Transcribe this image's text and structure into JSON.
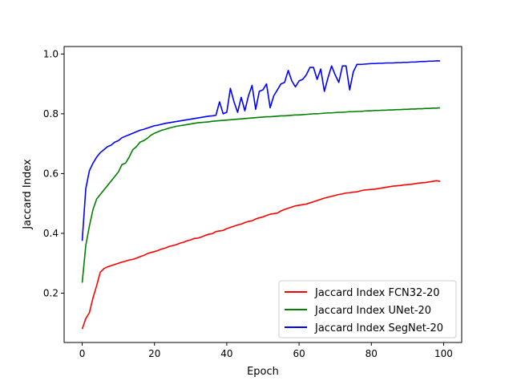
{
  "chart_data": {
    "type": "line",
    "title": "",
    "xlabel": "Epoch",
    "ylabel": "Jaccard Index",
    "xlim": [
      -5,
      105
    ],
    "ylim": [
      0.035,
      1.025
    ],
    "xticks": [
      0,
      20,
      40,
      60,
      80,
      100
    ],
    "yticks": [
      0.2,
      0.4,
      0.6,
      0.8,
      1.0
    ],
    "ytick_labels": [
      "0.2",
      "0.4",
      "0.6",
      "0.8",
      "1.0"
    ],
    "grid": false,
    "legend_position": "lower-right",
    "series": [
      {
        "name": "Jaccard Index FCN32-20",
        "color": "#ff0000",
        "x": [
          0,
          1,
          2,
          3,
          4,
          5,
          6,
          7,
          8,
          9,
          10,
          11,
          12,
          13,
          14,
          15,
          16,
          17,
          18,
          19,
          20,
          21,
          22,
          23,
          24,
          25,
          26,
          27,
          28,
          29,
          30,
          31,
          32,
          33,
          34,
          35,
          36,
          37,
          38,
          39,
          40,
          41,
          42,
          43,
          44,
          45,
          46,
          47,
          48,
          49,
          50,
          51,
          52,
          53,
          54,
          55,
          56,
          57,
          58,
          59,
          60,
          61,
          62,
          63,
          64,
          65,
          66,
          67,
          68,
          69,
          70,
          71,
          72,
          73,
          74,
          75,
          76,
          77,
          78,
          79,
          80,
          81,
          82,
          83,
          84,
          85,
          86,
          87,
          88,
          89,
          90,
          91,
          92,
          93,
          94,
          95,
          96,
          97,
          98,
          99
        ],
        "y": [
          0.08,
          0.115,
          0.135,
          0.185,
          0.225,
          0.27,
          0.282,
          0.288,
          0.292,
          0.296,
          0.3,
          0.304,
          0.307,
          0.311,
          0.313,
          0.317,
          0.322,
          0.326,
          0.332,
          0.336,
          0.339,
          0.343,
          0.348,
          0.351,
          0.356,
          0.359,
          0.362,
          0.367,
          0.37,
          0.375,
          0.378,
          0.383,
          0.384,
          0.388,
          0.393,
          0.397,
          0.399,
          0.406,
          0.408,
          0.41,
          0.416,
          0.42,
          0.424,
          0.428,
          0.431,
          0.436,
          0.44,
          0.442,
          0.448,
          0.452,
          0.455,
          0.46,
          0.464,
          0.466,
          0.468,
          0.475,
          0.48,
          0.484,
          0.488,
          0.492,
          0.494,
          0.496,
          0.498,
          0.502,
          0.506,
          0.51,
          0.514,
          0.518,
          0.521,
          0.524,
          0.527,
          0.53,
          0.532,
          0.535,
          0.536,
          0.538,
          0.539,
          0.542,
          0.545,
          0.546,
          0.547,
          0.548,
          0.55,
          0.552,
          0.554,
          0.556,
          0.558,
          0.559,
          0.56,
          0.562,
          0.563,
          0.564,
          0.566,
          0.568,
          0.569,
          0.57,
          0.572,
          0.574,
          0.576,
          0.574
        ]
      },
      {
        "name": "Jaccard Index UNet-20",
        "color": "#008000",
        "x": [
          0,
          1,
          2,
          3,
          4,
          5,
          6,
          7,
          8,
          9,
          10,
          11,
          12,
          13,
          14,
          15,
          16,
          17,
          18,
          19,
          20,
          21,
          22,
          23,
          24,
          25,
          26,
          27,
          28,
          29,
          30,
          31,
          32,
          33,
          34,
          35,
          36,
          37,
          38,
          39,
          40,
          41,
          42,
          43,
          44,
          45,
          46,
          47,
          48,
          49,
          50,
          51,
          52,
          53,
          54,
          55,
          56,
          57,
          58,
          59,
          60,
          61,
          62,
          63,
          64,
          65,
          66,
          67,
          68,
          69,
          70,
          71,
          72,
          73,
          74,
          75,
          76,
          77,
          78,
          79,
          80,
          81,
          82,
          83,
          84,
          85,
          86,
          87,
          88,
          89,
          90,
          91,
          92,
          93,
          94,
          95,
          96,
          97,
          98,
          99
        ],
        "y": [
          0.235,
          0.36,
          0.425,
          0.48,
          0.515,
          0.53,
          0.545,
          0.56,
          0.575,
          0.59,
          0.605,
          0.63,
          0.635,
          0.655,
          0.68,
          0.69,
          0.705,
          0.71,
          0.718,
          0.728,
          0.735,
          0.74,
          0.745,
          0.748,
          0.752,
          0.755,
          0.758,
          0.76,
          0.762,
          0.764,
          0.766,
          0.768,
          0.77,
          0.771,
          0.772,
          0.773,
          0.775,
          0.776,
          0.777,
          0.778,
          0.779,
          0.78,
          0.781,
          0.782,
          0.783,
          0.784,
          0.785,
          0.786,
          0.787,
          0.788,
          0.789,
          0.79,
          0.79,
          0.791,
          0.792,
          0.793,
          0.793,
          0.794,
          0.795,
          0.796,
          0.796,
          0.797,
          0.798,
          0.799,
          0.8,
          0.8,
          0.801,
          0.802,
          0.803,
          0.803,
          0.804,
          0.805,
          0.805,
          0.806,
          0.807,
          0.807,
          0.808,
          0.808,
          0.809,
          0.81,
          0.81,
          0.811,
          0.811,
          0.812,
          0.812,
          0.813,
          0.813,
          0.814,
          0.814,
          0.815,
          0.815,
          0.816,
          0.816,
          0.817,
          0.817,
          0.818,
          0.818,
          0.819,
          0.819,
          0.82
        ]
      },
      {
        "name": "Jaccard Index SegNet-20",
        "color": "#0000ff",
        "x": [
          0,
          1,
          2,
          3,
          4,
          5,
          6,
          7,
          8,
          9,
          10,
          11,
          12,
          13,
          14,
          15,
          16,
          17,
          18,
          19,
          20,
          21,
          22,
          23,
          24,
          25,
          26,
          27,
          28,
          29,
          30,
          31,
          32,
          33,
          34,
          35,
          36,
          37,
          38,
          39,
          40,
          41,
          42,
          43,
          44,
          45,
          46,
          47,
          48,
          49,
          50,
          51,
          52,
          53,
          54,
          55,
          56,
          57,
          58,
          59,
          60,
          61,
          62,
          63,
          64,
          65,
          66,
          67,
          68,
          69,
          70,
          71,
          72,
          73,
          74,
          75,
          76,
          77,
          78,
          79,
          80,
          81,
          82,
          83,
          84,
          85,
          86,
          87,
          88,
          89,
          90,
          91,
          92,
          93,
          94,
          95,
          96,
          97,
          98,
          99
        ],
        "y": [
          0.375,
          0.55,
          0.61,
          0.635,
          0.655,
          0.67,
          0.68,
          0.69,
          0.695,
          0.705,
          0.71,
          0.72,
          0.725,
          0.73,
          0.735,
          0.74,
          0.745,
          0.748,
          0.752,
          0.756,
          0.76,
          0.762,
          0.765,
          0.768,
          0.77,
          0.772,
          0.774,
          0.776,
          0.778,
          0.78,
          0.782,
          0.784,
          0.786,
          0.788,
          0.79,
          0.792,
          0.793,
          0.795,
          0.84,
          0.8,
          0.805,
          0.885,
          0.84,
          0.805,
          0.855,
          0.81,
          0.86,
          0.895,
          0.815,
          0.875,
          0.88,
          0.9,
          0.82,
          0.86,
          0.88,
          0.9,
          0.905,
          0.945,
          0.91,
          0.89,
          0.91,
          0.915,
          0.93,
          0.955,
          0.955,
          0.915,
          0.95,
          0.875,
          0.92,
          0.96,
          0.93,
          0.905,
          0.96,
          0.96,
          0.88,
          0.94,
          0.965,
          0.965,
          0.966,
          0.967,
          0.968,
          0.968,
          0.969,
          0.969,
          0.97,
          0.97,
          0.97,
          0.971,
          0.971,
          0.972,
          0.972,
          0.973,
          0.973,
          0.974,
          0.975,
          0.975,
          0.976,
          0.976,
          0.977,
          0.977
        ]
      }
    ]
  }
}
